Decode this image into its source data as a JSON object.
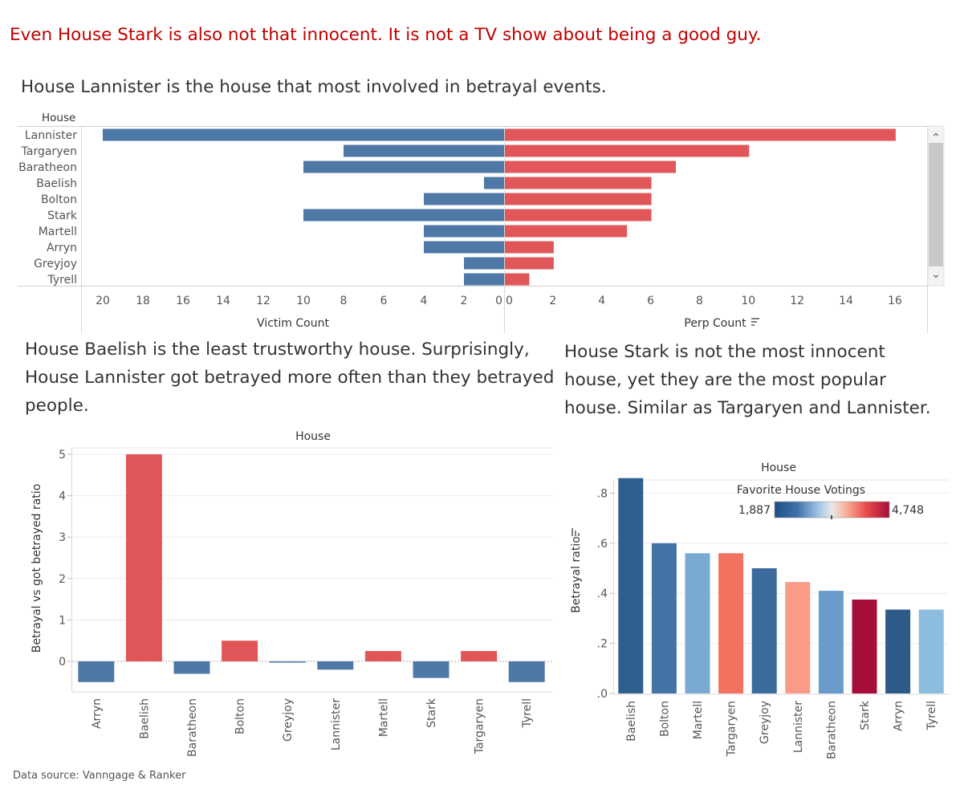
{
  "headline": "Even House Stark is also not that innocent. It is not a TV show about being a good guy.",
  "source": "Data source: Vanngage & Ranker",
  "colors": {
    "victim": "#4e79a7",
    "perp": "#e15759",
    "headline": "#c00000"
  },
  "chart_data": [
    {
      "type": "bar",
      "orientation": "horizontal-diverging",
      "title": "House Lannister is the house that most involved in  betrayal events.",
      "row_header": "House",
      "categories": [
        "Lannister",
        "Targaryen",
        "Baratheon",
        "Baelish",
        "Bolton",
        "Stark",
        "Martell",
        "Arryn",
        "Greyjoy",
        "Tyrell"
      ],
      "series": [
        {
          "name": "Victim Count",
          "values": [
            20,
            8,
            10,
            1,
            4,
            10,
            4,
            4,
            2,
            2
          ],
          "xlim": [
            20,
            0
          ],
          "ticks": [
            20,
            18,
            16,
            14,
            12,
            10,
            8,
            6,
            4,
            2,
            0
          ]
        },
        {
          "name": "Perp Count",
          "values": [
            16,
            10,
            7,
            6,
            6,
            6,
            5,
            2,
            2,
            1
          ],
          "xlim": [
            0,
            16.3
          ],
          "ticks": [
            0,
            2,
            4,
            6,
            8,
            10,
            12,
            14,
            16
          ]
        }
      ],
      "xlabel_left": "Victim Count",
      "xlabel_right": "Perp Count",
      "sort_icon": "sort-descending-icon",
      "scrollbar": {
        "up_glyph": "⌃",
        "down_glyph": "⌄"
      }
    },
    {
      "type": "bar",
      "title": "House Baelish is the least trustworthy house. Surprisingly, House Lannister got betrayed more often than they betrayed people.",
      "header": "House",
      "categories": [
        "Arryn",
        "Baelish",
        "Baratheon",
        "Bolton",
        "Greyjoy",
        "Lannister",
        "Martell",
        "Stark",
        "Targaryen",
        "Tyrell"
      ],
      "values": [
        -0.5,
        5.0,
        -0.3,
        0.5,
        -0.03,
        -0.2,
        0.25,
        -0.4,
        0.25,
        -0.5
      ],
      "ylabel": "Betrayal vs got betrayed ratio",
      "ylim": [
        -0.75,
        5.05
      ],
      "yticks": [
        0,
        1,
        2,
        3,
        4,
        5
      ],
      "color_rule": "positive = #e15759, negative = #4e79a7"
    },
    {
      "type": "bar",
      "title": "House Stark is not the most innocent house, yet they are the most popular house. Similar as Targaryen and Lannister.",
      "header": "House",
      "categories": [
        "Baelish",
        "Bolton",
        "Martell",
        "Targaryen",
        "Greyjoy",
        "Lannister",
        "Baratheon",
        "Stark",
        "Arryn",
        "Tyrell"
      ],
      "values": [
        0.86,
        0.6,
        0.56,
        0.56,
        0.5,
        0.445,
        0.41,
        0.375,
        0.335,
        0.335
      ],
      "bar_colors": [
        "#2f5f8f",
        "#4474a6",
        "#7aaad2",
        "#f2715f",
        "#3b6a9c",
        "#fa9b87",
        "#6a9ccb",
        "#a50f3a",
        "#2e5a8a",
        "#8cbcde"
      ],
      "ylabel": "Betrayal ratio",
      "ylim": [
        0,
        0.87
      ],
      "yticks": [
        0,
        0.2,
        0.4,
        0.6,
        0.8
      ],
      "ytick_labels": [
        ".0",
        ".2",
        ".4",
        ".6",
        ".8"
      ],
      "legend": {
        "title": "Favorite House Votings",
        "min_label": "1,887",
        "max_label": "4,748",
        "placement": "top-right"
      }
    }
  ]
}
